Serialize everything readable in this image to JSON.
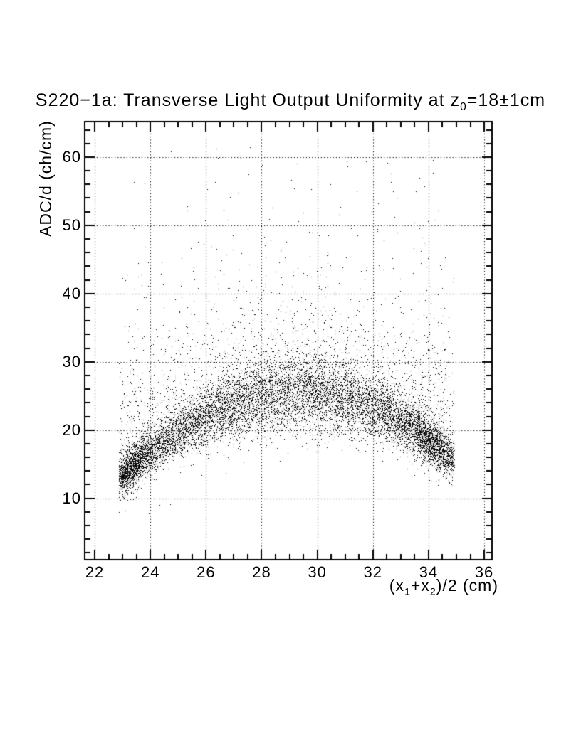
{
  "page": {
    "background": "#ffffff",
    "ink": "#000000"
  },
  "title": {
    "text": "S220−1a: Transverse Light Output Uniformity at z₀=18±1cm",
    "runs": [
      {
        "t": "S220−1a: Transverse Light Output Uniformity at z"
      },
      {
        "t": "0",
        "sub": true
      },
      {
        "t": "=18±1cm"
      }
    ]
  },
  "axes": {
    "x": {
      "label_text": "(x₁+x₂)/2 (cm)",
      "label_runs": [
        {
          "t": "(x"
        },
        {
          "t": "1",
          "sub": true
        },
        {
          "t": "+x"
        },
        {
          "t": "2",
          "sub": true
        },
        {
          "t": ")/2 (cm)"
        }
      ],
      "range": [
        21.64,
        36.28
      ],
      "major_ticks": [
        22,
        24,
        26,
        28,
        30,
        32,
        34,
        36
      ],
      "minor_step": 0.5,
      "grid_style": "dotted"
    },
    "y": {
      "label_text": "ADC/d (ch/cm)",
      "range": [
        1.0,
        65.2
      ],
      "major_ticks": [
        10,
        20,
        30,
        40,
        50,
        60
      ],
      "minor_step": 2,
      "grid_style": "dotted"
    }
  },
  "chart_data": {
    "type": "scatter",
    "title": "S220−1a: Transverse Light Output Uniformity at z₀=18±1cm",
    "xlabel": "(x₁+x₂)/2 (cm)",
    "ylabel": "ADC/d (ch/cm)",
    "xlim": [
      21.64,
      36.28
    ],
    "ylim": [
      1.0,
      65.2
    ],
    "grid": "dotted at every major tick, both axes",
    "marker": "1px black dot",
    "x_data_range": [
      22.9,
      34.9
    ],
    "n_points_est": 13500,
    "band_profile": {
      "comment": "dense arch-shaped band: center and ~1-sigma width of ADC/d vs x",
      "x": [
        23.0,
        24.0,
        25.0,
        26.0,
        27.0,
        28.0,
        29.0,
        29.4,
        30.0,
        31.0,
        32.0,
        33.0,
        34.0,
        34.8
      ],
      "band_center": [
        13.4,
        16.8,
        19.6,
        21.8,
        23.5,
        24.6,
        25.1,
        25.2,
        25.1,
        24.4,
        23.0,
        20.9,
        18.3,
        15.9
      ],
      "band_sigma": [
        1.4,
        1.7,
        2.1,
        2.4,
        2.7,
        2.8,
        2.8,
        2.8,
        2.8,
        2.7,
        2.4,
        2.1,
        1.7,
        1.4
      ]
    },
    "upper_tail": {
      "fraction": 0.17,
      "exp_scale": 7.0,
      "offset": 1.0,
      "max_y": 61.5
    },
    "lower_outliers": {
      "fraction": 0.004,
      "gauss_scale": 4.0,
      "offset": 2.0,
      "min_y": 5.8
    },
    "edge_clusters": [
      {
        "x_mu": 23.35,
        "x_sd": 0.28,
        "fraction": 0.055
      },
      {
        "x_mu": 34.05,
        "x_sd": 0.38,
        "fraction": 0.055
      }
    ],
    "render_profile": {
      "seed": 1337,
      "n_points": 13500,
      "peak_x": 29.4,
      "peak_mean": 25.2,
      "a_left": 0.29,
      "a_right": 0.32,
      "sigma_base": 1.25,
      "sigma_add": 1.55,
      "sigma_width": 4.2
    }
  }
}
